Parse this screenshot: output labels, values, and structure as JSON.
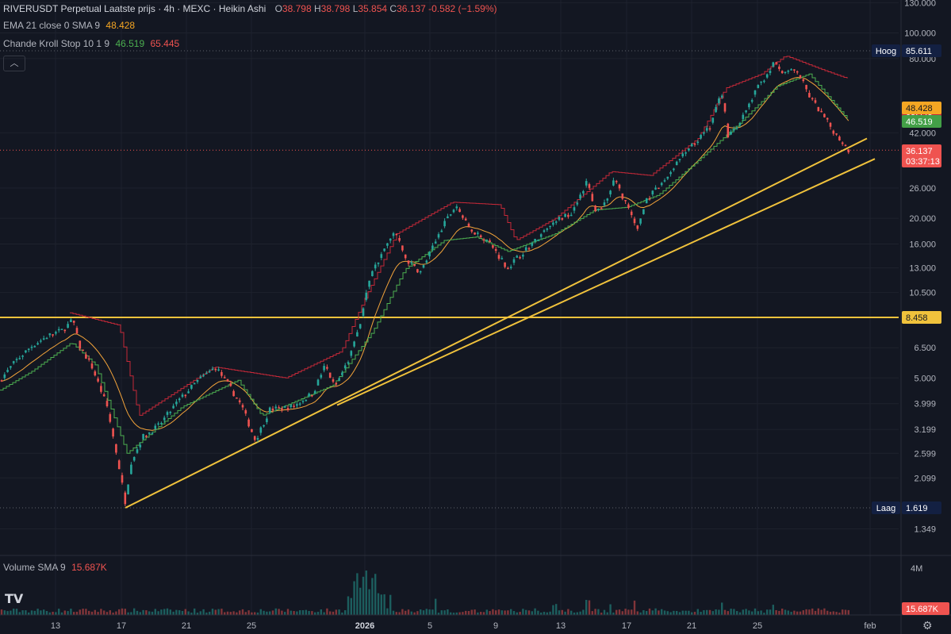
{
  "header": {
    "symbol": "RIVERUSDT Perpetual Laatste prijs · 4h · MEXC · Heikin Ashi",
    "o_label": "O",
    "o_value": "38.798",
    "h_label": "H",
    "h_value": "38.798",
    "l_label": "L",
    "l_value": "35.854",
    "c_label": "C",
    "c_value": "36.137",
    "change": "-0.582 (−1.59%)"
  },
  "indicators": {
    "ema_label": "EMA 21 close 0 SMA 9",
    "ema_value": "48.428",
    "ck_label": "Chande Kroll Stop 10 1 9",
    "ck_value1": "46.519",
    "ck_value2": "65.445",
    "volume_label": "Volume SMA 9",
    "volume_value": "15.687K"
  },
  "colors": {
    "background": "#131722",
    "grid": "#1e222d",
    "up": "#26a69a",
    "down": "#ef5350",
    "ema": "#f2a33a",
    "ck_long": "#4caf50",
    "ck_short": "#c62838",
    "trendline": "#f0c23c",
    "text": "#b2b5be"
  },
  "chart_data": {
    "type": "candlestick",
    "price_scale": "log",
    "y_ticks": [
      "130.000",
      "100.000",
      "80.000",
      "42.000",
      "26.000",
      "20.000",
      "16.000",
      "13.000",
      "10.500",
      "6.500",
      "5.000",
      "3.999",
      "3.199",
      "2.599",
      "2.099",
      "1.349"
    ],
    "x_ticks": [
      "13",
      "17",
      "21",
      "25",
      "2026",
      "5",
      "9",
      "13",
      "17",
      "21",
      "25",
      "feb"
    ],
    "price_labels": [
      {
        "label": "Hoog",
        "value": "85.611",
        "color": "#132042"
      },
      {
        "label": "",
        "value": "65.445",
        "color": "#c62838"
      },
      {
        "label": "",
        "value": "48.428",
        "color": "#f5a623"
      },
      {
        "label": "",
        "value": "46.519",
        "color": "#43a047"
      },
      {
        "label": "",
        "value": "36.137",
        "color": "#ef5350"
      },
      {
        "label": "",
        "value": "03:37:13",
        "color": "#ef5350"
      },
      {
        "label": "",
        "value": "8.458",
        "color": "#f0c23c"
      },
      {
        "label": "Laag",
        "value": "1.619",
        "color": "#132042"
      }
    ],
    "horizontal_line": 8.458,
    "high": 85.611,
    "low": 1.619,
    "last": 36.137,
    "volume_axis": "4M",
    "volume_last": "15.687K",
    "anchors": [
      [
        0,
        4.9
      ],
      [
        20,
        5.8
      ],
      [
        40,
        6.6
      ],
      [
        60,
        7.2
      ],
      [
        80,
        7.6
      ],
      [
        92,
        8.3
      ],
      [
        100,
        6.6
      ],
      [
        115,
        5.6
      ],
      [
        135,
        3.9
      ],
      [
        148,
        2.5
      ],
      [
        158,
        1.7
      ],
      [
        165,
        2.4
      ],
      [
        180,
        3.0
      ],
      [
        200,
        3.3
      ],
      [
        225,
        4.1
      ],
      [
        250,
        4.9
      ],
      [
        272,
        5.5
      ],
      [
        290,
        4.6
      ],
      [
        305,
        3.9
      ],
      [
        322,
        2.9
      ],
      [
        340,
        3.8
      ],
      [
        370,
        3.9
      ],
      [
        395,
        4.4
      ],
      [
        410,
        5.6
      ],
      [
        422,
        4.6
      ],
      [
        440,
        5.9
      ],
      [
        455,
        8.2
      ],
      [
        465,
        11.8
      ],
      [
        480,
        14.5
      ],
      [
        498,
        17.8
      ],
      [
        512,
        14.0
      ],
      [
        530,
        12.5
      ],
      [
        548,
        16.0
      ],
      [
        560,
        19.0
      ],
      [
        575,
        22.5
      ],
      [
        590,
        18.5
      ],
      [
        615,
        16.5
      ],
      [
        640,
        13.0
      ],
      [
        660,
        15.0
      ],
      [
        680,
        17.0
      ],
      [
        700,
        19.5
      ],
      [
        720,
        21.0
      ],
      [
        740,
        27.5
      ],
      [
        752,
        21.0
      ],
      [
        765,
        24.0
      ],
      [
        775,
        28.0
      ],
      [
        790,
        22.5
      ],
      [
        803,
        18.0
      ],
      [
        815,
        23.5
      ],
      [
        835,
        27.0
      ],
      [
        855,
        33.0
      ],
      [
        875,
        38.0
      ],
      [
        895,
        44.0
      ],
      [
        910,
        60.0
      ],
      [
        918,
        41.0
      ],
      [
        935,
        47.0
      ],
      [
        955,
        62.0
      ],
      [
        975,
        76.0
      ],
      [
        990,
        71.0
      ],
      [
        1005,
        72.0
      ],
      [
        1020,
        58.0
      ],
      [
        1035,
        50.0
      ],
      [
        1050,
        43.0
      ],
      [
        1070,
        36.1
      ]
    ],
    "ck_short_anchors": [
      [
        88,
        8.8
      ],
      [
        150,
        7.9
      ],
      [
        175,
        3.6
      ],
      [
        270,
        5.5
      ],
      [
        360,
        5.0
      ],
      [
        430,
        6.3
      ],
      [
        460,
        10.0
      ],
      [
        500,
        17.5
      ],
      [
        570,
        23.0
      ],
      [
        630,
        22.5
      ],
      [
        650,
        16.5
      ],
      [
        700,
        20.0
      ],
      [
        770,
        30.0
      ],
      [
        820,
        29.0
      ],
      [
        880,
        40.0
      ],
      [
        915,
        62.0
      ],
      [
        960,
        70.0
      ],
      [
        990,
        82.0
      ],
      [
        1040,
        72.0
      ],
      [
        1070,
        67.0
      ]
    ],
    "ck_long_anchors": [
      [
        0,
        4.5
      ],
      [
        40,
        5.3
      ],
      [
        90,
        6.8
      ],
      [
        120,
        5.6
      ],
      [
        160,
        2.6
      ],
      [
        230,
        3.9
      ],
      [
        300,
        4.9
      ],
      [
        330,
        3.6
      ],
      [
        420,
        4.7
      ],
      [
        470,
        7.5
      ],
      [
        510,
        12.8
      ],
      [
        560,
        16.5
      ],
      [
        600,
        17.0
      ],
      [
        640,
        15.0
      ],
      [
        700,
        17.5
      ],
      [
        750,
        21.5
      ],
      [
        790,
        22.0
      ],
      [
        830,
        24.5
      ],
      [
        880,
        33.0
      ],
      [
        930,
        45.0
      ],
      [
        980,
        63.0
      ],
      [
        1020,
        70.0
      ],
      [
        1070,
        46.5
      ]
    ],
    "trendlines": [
      {
        "x1": 158,
        "p1": 1.619,
        "x2": 1093,
        "p2": 40.0
      },
      {
        "x1": 425,
        "p1": 3.95,
        "x2": 1103,
        "p2": 33.5
      }
    ],
    "volume_spikes": [
      [
        440,
        0.35
      ],
      [
        448,
        0.85
      ],
      [
        452,
        0.55
      ],
      [
        458,
        0.7
      ],
      [
        462,
        0.9
      ],
      [
        468,
        0.6
      ],
      [
        472,
        0.75
      ],
      [
        478,
        0.5
      ],
      [
        485,
        0.4
      ],
      [
        492,
        0.45
      ],
      [
        550,
        0.35
      ],
      [
        700,
        0.2
      ],
      [
        740,
        0.3
      ],
      [
        770,
        0.25
      ],
      [
        800,
        0.3
      ],
      [
        910,
        0.3
      ],
      [
        975,
        0.2
      ]
    ]
  }
}
